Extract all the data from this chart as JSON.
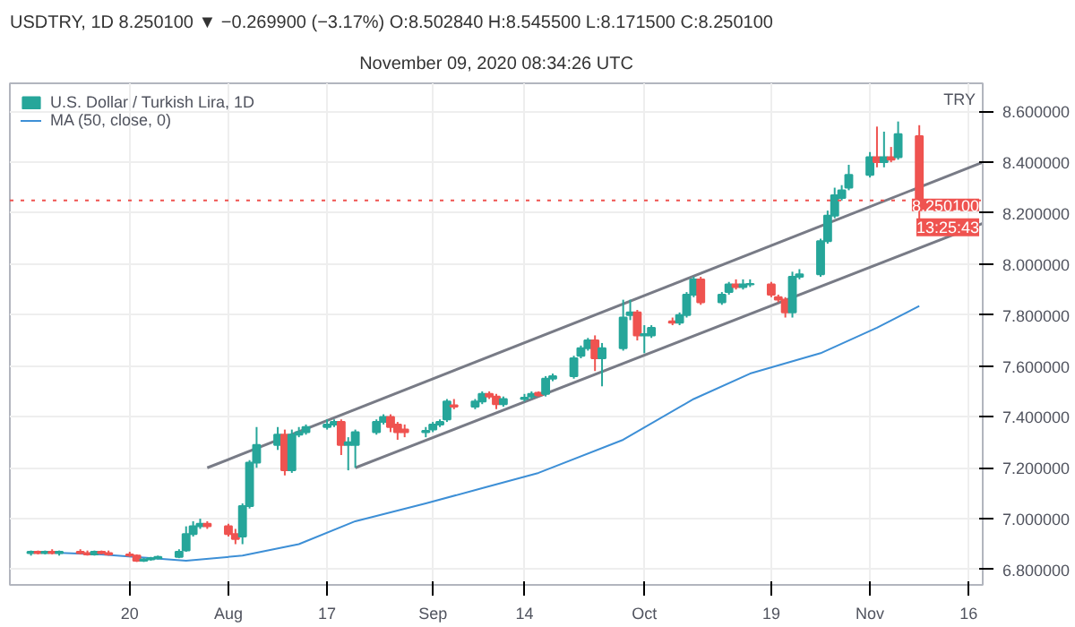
{
  "chart_data": {
    "type": "candlestick",
    "title": "USDTRY, 1D 8.250100 ▼ −0.269900 (−3.17%) O:8.502840 H:8.545500 L:8.171500 C:8.250100",
    "subtitle": "November 09, 2020 08:34:26 UTC",
    "ylabel": "TRY",
    "series": [
      {
        "name": "U.S. Dollar / Turkish Lira, 1D",
        "x": [
          "2020-07-06",
          "2020-07-07",
          "2020-07-08",
          "2020-07-09",
          "2020-07-10",
          "2020-07-13",
          "2020-07-14",
          "2020-07-15",
          "2020-07-16",
          "2020-07-17",
          "2020-07-20",
          "2020-07-21",
          "2020-07-22",
          "2020-07-23",
          "2020-07-24",
          "2020-07-27",
          "2020-07-28",
          "2020-07-29",
          "2020-07-30",
          "2020-07-31",
          "2020-08-03",
          "2020-08-04",
          "2020-08-05",
          "2020-08-06",
          "2020-08-07",
          "2020-08-10",
          "2020-08-11",
          "2020-08-12",
          "2020-08-13",
          "2020-08-14",
          "2020-08-17",
          "2020-08-18",
          "2020-08-19",
          "2020-08-20",
          "2020-08-21",
          "2020-08-24",
          "2020-08-25",
          "2020-08-26",
          "2020-08-27",
          "2020-08-28",
          "2020-08-31",
          "2020-09-01",
          "2020-09-02",
          "2020-09-03",
          "2020-09-04",
          "2020-09-07",
          "2020-09-08",
          "2020-09-09",
          "2020-09-10",
          "2020-09-11",
          "2020-09-14",
          "2020-09-15",
          "2020-09-16",
          "2020-09-17",
          "2020-09-18",
          "2020-09-21",
          "2020-09-22",
          "2020-09-23",
          "2020-09-24",
          "2020-09-25",
          "2020-09-28",
          "2020-09-29",
          "2020-09-30",
          "2020-10-01",
          "2020-10-02",
          "2020-10-05",
          "2020-10-06",
          "2020-10-07",
          "2020-10-08",
          "2020-10-09",
          "2020-10-12",
          "2020-10-13",
          "2020-10-14",
          "2020-10-15",
          "2020-10-16",
          "2020-10-19",
          "2020-10-20",
          "2020-10-21",
          "2020-10-22",
          "2020-10-23",
          "2020-10-26",
          "2020-10-27",
          "2020-10-28",
          "2020-10-29",
          "2020-10-30",
          "2020-11-02",
          "2020-11-03",
          "2020-11-04",
          "2020-11-05",
          "2020-11-06",
          "2020-11-09"
        ],
        "ohlc": [
          [
            6.865,
            6.875,
            6.855,
            6.87
          ],
          [
            6.87,
            6.875,
            6.86,
            6.865
          ],
          [
            6.865,
            6.875,
            6.86,
            6.87
          ],
          [
            6.87,
            6.88,
            6.86,
            6.865
          ],
          [
            6.865,
            6.875,
            6.855,
            6.87
          ],
          [
            6.87,
            6.88,
            6.86,
            6.865
          ],
          [
            6.865,
            6.875,
            6.855,
            6.86
          ],
          [
            6.86,
            6.875,
            6.855,
            6.87
          ],
          [
            6.87,
            6.875,
            6.86,
            6.865
          ],
          [
            6.865,
            6.875,
            6.855,
            6.86
          ],
          [
            6.86,
            6.87,
            6.85,
            6.855
          ],
          [
            6.855,
            6.86,
            6.83,
            6.835
          ],
          [
            6.835,
            6.845,
            6.83,
            6.84
          ],
          [
            6.84,
            6.85,
            6.835,
            6.845
          ],
          [
            6.845,
            6.855,
            6.84,
            6.85
          ],
          [
            6.85,
            6.88,
            6.845,
            6.87
          ],
          [
            6.875,
            6.97,
            6.87,
            6.94
          ],
          [
            6.94,
            6.99,
            6.93,
            6.97
          ],
          [
            6.97,
            7.0,
            6.96,
            6.98
          ],
          [
            6.98,
            6.99,
            6.96,
            6.97
          ],
          [
            6.97,
            6.98,
            6.93,
            6.94
          ],
          [
            6.94,
            6.96,
            6.9,
            6.92
          ],
          [
            6.93,
            7.06,
            6.9,
            7.05
          ],
          [
            7.05,
            7.23,
            7.04,
            7.22
          ],
          [
            7.22,
            7.36,
            7.2,
            7.29
          ],
          [
            7.29,
            7.36,
            7.27,
            7.33
          ],
          [
            7.33,
            7.35,
            7.17,
            7.19
          ],
          [
            7.19,
            7.35,
            7.18,
            7.33
          ],
          [
            7.33,
            7.36,
            7.32,
            7.34
          ],
          [
            7.34,
            7.37,
            7.33,
            7.36
          ],
          [
            7.36,
            7.39,
            7.35,
            7.37
          ],
          [
            7.37,
            7.39,
            7.36,
            7.38
          ],
          [
            7.38,
            7.39,
            7.25,
            7.29
          ],
          [
            7.29,
            7.32,
            7.19,
            7.3
          ],
          [
            7.29,
            7.35,
            7.2,
            7.34
          ],
          [
            7.34,
            7.39,
            7.33,
            7.38
          ],
          [
            7.38,
            7.41,
            7.37,
            7.4
          ],
          [
            7.4,
            7.41,
            7.34,
            7.36
          ],
          [
            7.37,
            7.38,
            7.31,
            7.34
          ],
          [
            7.35,
            7.37,
            7.32,
            7.34
          ],
          [
            7.34,
            7.36,
            7.32,
            7.345
          ],
          [
            7.35,
            7.38,
            7.34,
            7.37
          ],
          [
            7.37,
            7.39,
            7.36,
            7.38
          ],
          [
            7.39,
            7.47,
            7.38,
            7.46
          ],
          [
            7.445,
            7.47,
            7.43,
            7.44
          ],
          [
            7.44,
            7.47,
            7.43,
            7.46
          ],
          [
            7.46,
            7.5,
            7.45,
            7.49
          ],
          [
            7.49,
            7.5,
            7.47,
            7.48
          ],
          [
            7.48,
            7.49,
            7.43,
            7.45
          ],
          [
            7.45,
            7.48,
            7.44,
            7.47
          ],
          [
            7.47,
            7.49,
            7.46,
            7.475
          ],
          [
            7.48,
            7.5,
            7.47,
            7.49
          ],
          [
            7.495,
            7.5,
            7.48,
            7.485
          ],
          [
            7.49,
            7.56,
            7.48,
            7.55
          ],
          [
            7.55,
            7.57,
            7.54,
            7.56
          ],
          [
            7.56,
            7.64,
            7.55,
            7.63
          ],
          [
            7.64,
            7.68,
            7.63,
            7.67
          ],
          [
            7.67,
            7.71,
            7.66,
            7.7
          ],
          [
            7.7,
            7.72,
            7.58,
            7.63
          ],
          [
            7.63,
            7.69,
            7.52,
            7.67
          ],
          [
            7.67,
            7.86,
            7.66,
            7.79
          ],
          [
            7.8,
            7.86,
            7.78,
            7.81
          ],
          [
            7.81,
            7.82,
            7.7,
            7.72
          ],
          [
            7.72,
            7.76,
            7.65,
            7.725
          ],
          [
            7.72,
            7.76,
            7.71,
            7.75
          ],
          [
            7.775,
            7.79,
            7.76,
            7.77
          ],
          [
            7.77,
            7.81,
            7.76,
            7.8
          ],
          [
            7.8,
            7.89,
            7.79,
            7.88
          ],
          [
            7.88,
            7.95,
            7.87,
            7.94
          ],
          [
            7.94,
            7.95,
            7.84,
            7.85
          ],
          [
            7.85,
            7.89,
            7.84,
            7.88
          ],
          [
            7.89,
            7.93,
            7.88,
            7.92
          ],
          [
            7.92,
            7.94,
            7.9,
            7.91
          ],
          [
            7.91,
            7.94,
            7.9,
            7.92
          ],
          [
            7.92,
            7.94,
            7.91,
            7.922
          ],
          [
            7.92,
            7.93,
            7.87,
            7.88
          ],
          [
            7.87,
            7.88,
            7.85,
            7.86
          ],
          [
            7.86,
            7.87,
            7.79,
            7.81
          ],
          [
            7.81,
            7.97,
            7.79,
            7.95
          ],
          [
            7.95,
            7.98,
            7.94,
            7.96
          ],
          [
            7.96,
            8.1,
            7.95,
            8.09
          ],
          [
            8.09,
            8.21,
            8.08,
            8.19
          ],
          [
            8.19,
            8.3,
            8.18,
            8.27
          ],
          [
            8.26,
            8.31,
            8.25,
            8.29
          ],
          [
            8.3,
            8.39,
            8.29,
            8.35
          ],
          [
            8.35,
            8.44,
            8.34,
            8.42
          ],
          [
            8.42,
            8.54,
            8.38,
            8.4
          ],
          [
            8.4,
            8.52,
            8.38,
            8.42
          ],
          [
            8.42,
            8.46,
            8.4,
            8.41
          ],
          [
            8.42,
            8.56,
            8.41,
            8.51
          ],
          [
            8.50284,
            8.5455,
            8.1715,
            8.2501
          ]
        ],
        "colors": [
          "#26a69a",
          "#ef5350",
          "#26a69a",
          "#ef5350",
          "#26a69a",
          "#ef5350",
          "#ef5350",
          "#26a69a",
          "#ef5350",
          "#ef5350",
          "#ef5350",
          "#ef5350",
          "#26a69a",
          "#26a69a",
          "#26a69a",
          "#26a69a",
          "#26a69a",
          "#26a69a",
          "#26a69a",
          "#ef5350",
          "#ef5350",
          "#ef5350",
          "#26a69a",
          "#26a69a",
          "#26a69a",
          "#26a69a",
          "#ef5350",
          "#26a69a",
          "#26a69a",
          "#26a69a",
          "#26a69a",
          "#26a69a",
          "#ef5350",
          "#26a69a",
          "#26a69a",
          "#26a69a",
          "#26a69a",
          "#ef5350",
          "#ef5350",
          "#ef5350",
          "#26a69a",
          "#26a69a",
          "#26a69a",
          "#26a69a",
          "#ef5350",
          "#26a69a",
          "#26a69a",
          "#ef5350",
          "#ef5350",
          "#26a69a",
          "#26a69a",
          "#26a69a",
          "#ef5350",
          "#26a69a",
          "#26a69a",
          "#26a69a",
          "#26a69a",
          "#26a69a",
          "#ef5350",
          "#26a69a",
          "#26a69a",
          "#26a69a",
          "#ef5350",
          "#26a69a",
          "#26a69a",
          "#ef5350",
          "#26a69a",
          "#26a69a",
          "#26a69a",
          "#ef5350",
          "#26a69a",
          "#26a69a",
          "#ef5350",
          "#26a69a",
          "#26a69a",
          "#ef5350",
          "#ef5350",
          "#ef5350",
          "#26a69a",
          "#26a69a",
          "#26a69a",
          "#26a69a",
          "#26a69a",
          "#26a69a",
          "#26a69a",
          "#26a69a",
          "#ef5350",
          "#26a69a",
          "#ef5350",
          "#26a69a",
          "#ef5350"
        ]
      },
      {
        "name": "MA (50, close, 0)",
        "type": "line",
        "color": "#3d8fd6",
        "x": [
          "2020-07-06",
          "2020-07-16",
          "2020-07-28",
          "2020-08-05",
          "2020-08-13",
          "2020-08-21",
          "2020-08-31",
          "2020-09-08",
          "2020-09-16",
          "2020-09-28",
          "2020-10-08",
          "2020-10-16",
          "2020-10-26",
          "2020-11-03",
          "2020-11-09"
        ],
        "values": [
          6.87,
          6.86,
          6.835,
          6.855,
          6.9,
          6.99,
          7.06,
          7.12,
          7.18,
          7.31,
          7.47,
          7.57,
          7.65,
          7.75,
          7.835
        ]
      },
      {
        "type": "line",
        "color": "#787b86",
        "x": [
          "2020-07-31",
          "2020-11-18"
        ],
        "values": [
          7.2,
          8.4
        ]
      },
      {
        "type": "line",
        "color": "#787b86",
        "x": [
          "2020-08-21",
          "2020-11-18"
        ],
        "values": [
          7.2,
          8.16
        ]
      }
    ],
    "xlim": [
      "2020-07-03",
      "2020-11-18"
    ],
    "xticks": [
      {
        "value": "2020-07-20",
        "label": "20"
      },
      {
        "value": "2020-08-03",
        "label": "Aug"
      },
      {
        "value": "2020-08-17",
        "label": "17"
      },
      {
        "value": "2020-09-01",
        "label": "Sep"
      },
      {
        "value": "2020-09-14",
        "label": "14"
      },
      {
        "value": "2020-10-01",
        "label": "Oct"
      },
      {
        "value": "2020-10-19",
        "label": "19"
      },
      {
        "value": "2020-11-02",
        "label": "Nov"
      },
      {
        "value": "2020-11-16",
        "label": "16"
      }
    ],
    "ylim": [
      6.74,
      8.71
    ],
    "yticks": [
      {
        "value": 6.8,
        "label": "6.800000"
      },
      {
        "value": 7.0,
        "label": "7.000000"
      },
      {
        "value": 7.2,
        "label": "7.200000"
      },
      {
        "value": 7.4,
        "label": "7.400000"
      },
      {
        "value": 7.6,
        "label": "7.600000"
      },
      {
        "value": 7.8,
        "label": "7.800000"
      },
      {
        "value": 8.0,
        "label": "8.000000"
      },
      {
        "value": 8.2,
        "label": "8.200000"
      },
      {
        "value": 8.4,
        "label": "8.400000"
      },
      {
        "value": 8.6,
        "label": "8.600000"
      }
    ],
    "grid": true,
    "legend": "top left",
    "ref_lines": [
      {
        "axis": "y",
        "value": 8.2501,
        "label": "8.250100",
        "color": "#ef5350",
        "line_style": "dotted"
      }
    ],
    "annotations": [
      "13:25:43"
    ]
  }
}
